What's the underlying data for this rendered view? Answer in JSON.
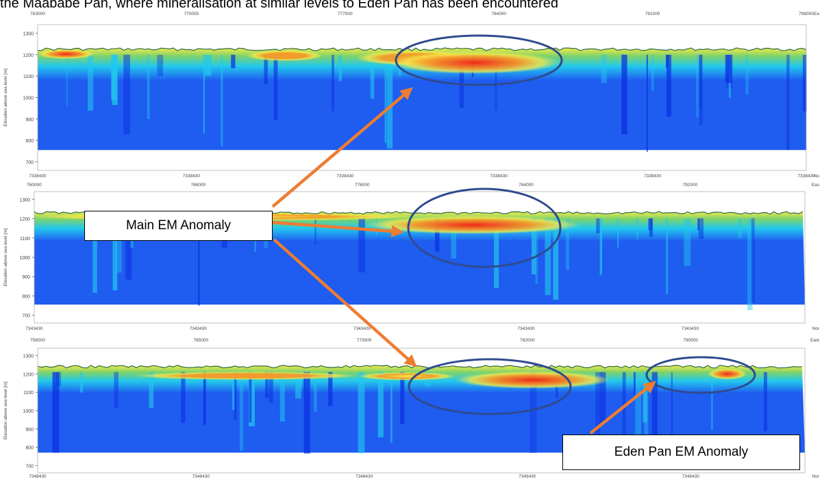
{
  "header": {
    "text": "the Maababe Pan, where mineralisation at similar levels to Eden Pan has been encountered"
  },
  "callouts": {
    "main": "Main EM Anomaly",
    "eden": "Eden Pan EM Anomaly"
  },
  "colors": {
    "arrow": "#ed7d31",
    "ellipse": "#2f4b8f",
    "deep": "#0a2fe0",
    "blue": "#1f5cf0",
    "cyan": "#22c8ee",
    "green": "#7ed36a",
    "yellow": "#f6e94a",
    "orange": "#f59a2a",
    "red": "#f0281a"
  },
  "chart_data": [
    {
      "type": "heatmap",
      "ylabel": "Elevation above sea level [m]",
      "yticks": [
        700,
        800,
        900,
        1000,
        1100,
        1200,
        1300
      ],
      "ylim": [
        660,
        1340
      ],
      "xlim": [
        763000,
        798000
      ],
      "top_ticks": [
        "763000",
        "770000",
        "777000",
        "784000",
        "791000",
        "798000"
      ],
      "top_axis_label": "Ea",
      "bottom_ticks": [
        "7338430",
        "7338430",
        "7338430",
        "7338430",
        "7338430",
        "7338430"
      ],
      "bottom_axis_label": "No",
      "surface_elevation": 1225,
      "base_elevation": 755,
      "conductors": [
        {
          "x": [
            763000,
            765600
          ],
          "top": 1225,
          "depth": 1180,
          "intensity": 0.95
        },
        {
          "x": [
            772500,
            776000
          ],
          "top": 1220,
          "depth": 1170,
          "intensity": 0.72
        },
        {
          "x": [
            777500,
            782800
          ],
          "top": 1220,
          "depth": 1150,
          "intensity": 0.75
        },
        {
          "x": [
            779000,
            786800
          ],
          "top": 1215,
          "depth": 1110,
          "intensity": 1.0
        }
      ]
    },
    {
      "type": "heatmap",
      "ylabel": "Elevation above sea level [m]",
      "yticks": [
        700,
        800,
        900,
        1000,
        1100,
        1200,
        1300
      ],
      "ylim": [
        660,
        1340
      ],
      "xlim": [
        760000,
        796000
      ],
      "top_ticks": [
        "760000",
        "768000",
        "776000",
        "784000",
        "792000"
      ],
      "top_axis_label": "Eas",
      "bottom_ticks": [
        "7343430",
        "7343430",
        "7343430",
        "7343430",
        "7343430"
      ],
      "bottom_axis_label": "Nor",
      "surface_elevation": 1230,
      "base_elevation": 755,
      "conductors": [
        {
          "x": [
            760000,
            778000
          ],
          "top": 1225,
          "depth": 1195,
          "intensity": 0.6
        },
        {
          "x": [
            775500,
            785500
          ],
          "top": 1215,
          "depth": 1120,
          "intensity": 1.0
        }
      ]
    },
    {
      "type": "heatmap",
      "ylabel": "Elevation above sea level [m]",
      "yticks": [
        700,
        800,
        900,
        1000,
        1100,
        1200,
        1300
      ],
      "ylim": [
        660,
        1340
      ],
      "xlim": [
        756500,
        796000
      ],
      "top_ticks": [
        "756500",
        "765000",
        "773500",
        "782000",
        "790500"
      ],
      "top_axis_label": "East",
      "bottom_ticks": [
        "7348430",
        "7348430",
        "7348430",
        "7348430",
        "7348430"
      ],
      "bottom_axis_label": "Nor",
      "surface_elevation": 1240,
      "base_elevation": 770,
      "conductors": [
        {
          "x": [
            761500,
            773000
          ],
          "top": 1210,
          "depth": 1170,
          "intensity": 0.72
        },
        {
          "x": [
            773000,
            778000
          ],
          "top": 1205,
          "depth": 1170,
          "intensity": 0.65
        },
        {
          "x": [
            778000,
            786000
          ],
          "top": 1215,
          "depth": 1120,
          "intensity": 1.0
        },
        {
          "x": [
            791000,
            793000
          ],
          "top": 1230,
          "depth": 1170,
          "intensity": 0.95
        }
      ]
    }
  ]
}
